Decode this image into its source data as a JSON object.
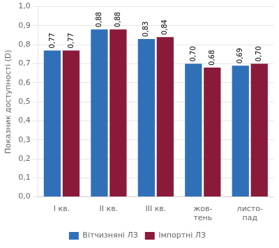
{
  "chart_data": {
    "type": "bar",
    "categories": [
      "І кв.",
      "ІІ кв.",
      "ІІІ кв.",
      "жов-\nтень",
      "листо-\nпад"
    ],
    "series": [
      {
        "name": "Вітчизняні ЛЗ",
        "color": "#3070B8",
        "values": [
          0.77,
          0.88,
          0.83,
          0.7,
          0.69
        ],
        "value_labels": [
          "0,77",
          "0,88",
          "0,83",
          "0,70",
          "0,69"
        ]
      },
      {
        "name": "Імпортні ЛЗ",
        "color": "#8B1A3A",
        "values": [
          0.77,
          0.88,
          0.84,
          0.68,
          0.7
        ],
        "value_labels": [
          "0,77",
          "0,88",
          "0,84",
          "0,68",
          "0,70"
        ]
      }
    ],
    "ylabel": "Показник доступності (D)",
    "ylim": [
      0.0,
      1.0
    ],
    "yticks": [
      {
        "value": 0.0,
        "label": "0,0"
      },
      {
        "value": 0.1,
        "label": "0,1"
      },
      {
        "value": 0.2,
        "label": "0,2"
      },
      {
        "value": 0.3,
        "label": "0,3"
      },
      {
        "value": 0.4,
        "label": "0,4"
      },
      {
        "value": 0.5,
        "label": "0,5"
      },
      {
        "value": 0.6,
        "label": "0,6"
      },
      {
        "value": 0.7,
        "label": "0,7"
      },
      {
        "value": 0.8,
        "label": "0,8"
      },
      {
        "value": 0.9,
        "label": "0,9"
      },
      {
        "value": 1.0,
        "label": "1,0"
      }
    ],
    "grid": true,
    "legend": "bottom",
    "data_labels": true
  }
}
